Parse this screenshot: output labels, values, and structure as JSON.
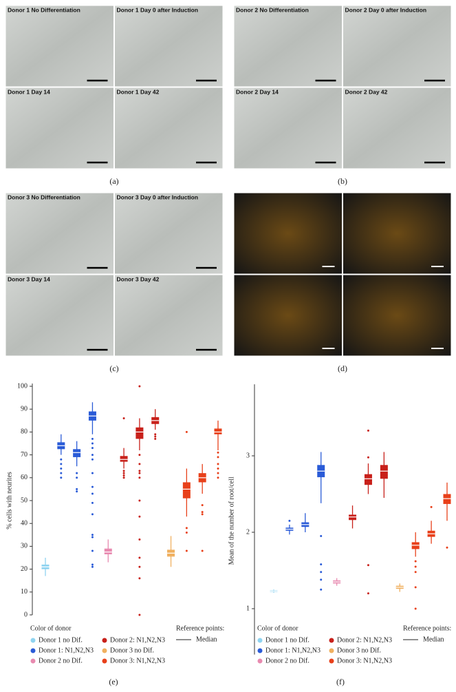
{
  "figure_panels": [
    {
      "label": "(a)",
      "images": [
        "Donor 1 No Differentiation",
        "Donor 1 Day 0 after Induction",
        "Donor 1 Day 14",
        "Donor 1 Day 42"
      ]
    },
    {
      "label": "(b)",
      "images": [
        "Donor 2 No Differentiation",
        "Donor 2 Day 0 after Induction",
        "Donor 2 Day 14",
        "Donor 2 Day 42"
      ]
    },
    {
      "label": "(c)",
      "images": [
        "Donor 3 No Differentiation",
        "Donor 3 Day 0 after Induction",
        "Donor 3 Day 14",
        "Donor 3 Day 42"
      ]
    },
    {
      "label": "(d)"
    }
  ],
  "chart_data": [
    {
      "type": "box",
      "panel_label": "(e)",
      "y_label": "% cells with neurites",
      "legend_title": "Color of donor",
      "reference_title": "Reference points:",
      "reference_label": "Median",
      "ylim": [
        0,
        100
      ],
      "yticks": [
        0,
        10,
        20,
        30,
        40,
        50,
        60,
        70,
        80,
        90,
        100
      ],
      "series": [
        {
          "name": "Donor 1 no Dif.",
          "color": "#8fd3f0",
          "boxes": [
            {
              "low": 17,
              "q1": 20,
              "median": 21,
              "q3": 22,
              "high": 25,
              "outliers": []
            }
          ]
        },
        {
          "name": "Donor 1: N1,N2,N3",
          "color": "#2a5bd7",
          "boxes": [
            {
              "low": 70,
              "q1": 72.5,
              "median": 74,
              "q3": 75.5,
              "high": 79,
              "outliers": [
                68,
                66,
                64,
                62,
                60
              ]
            },
            {
              "low": 65,
              "q1": 69,
              "median": 71,
              "q3": 72.5,
              "high": 76,
              "outliers": [
                62,
                60,
                55,
                54
              ]
            },
            {
              "low": 79,
              "q1": 85,
              "median": 87,
              "q3": 89,
              "high": 93,
              "outliers": [
                77,
                75,
                73,
                70,
                68,
                62,
                56,
                53,
                49,
                44,
                35,
                34,
                28,
                22,
                21
              ]
            }
          ]
        },
        {
          "name": "Donor 2 no Dif.",
          "color": "#e88ab0",
          "boxes": [
            {
              "low": 23,
              "q1": 26.5,
              "median": 27.5,
              "q3": 29,
              "high": 33,
              "outliers": []
            }
          ]
        },
        {
          "name": "Donor 2: N1,N2,N3",
          "color": "#c8201a",
          "boxes": [
            {
              "low": 64,
              "q1": 67,
              "median": 68,
              "q3": 69.5,
              "high": 73,
              "outliers": [
                86,
                63,
                62,
                61,
                60
              ]
            },
            {
              "low": 72,
              "q1": 77,
              "median": 80,
              "q3": 82,
              "high": 86,
              "outliers": [
                100,
                70,
                66,
                63,
                62,
                60,
                50,
                43,
                33,
                25,
                21,
                16,
                0
              ]
            },
            {
              "low": 81,
              "q1": 83.5,
              "median": 85,
              "q3": 86.5,
              "high": 90,
              "outliers": [
                79,
                78,
                77
              ]
            }
          ]
        },
        {
          "name": "Donor 3 no Dif.",
          "color": "#f0b060",
          "boxes": [
            {
              "low": 21,
              "q1": 25.5,
              "median": 27,
              "q3": 28.5,
              "high": 34.5,
              "outliers": []
            }
          ]
        },
        {
          "name": "Donor 3: N1,N2,N3",
          "color": "#e8401a",
          "boxes": [
            {
              "low": 43,
              "q1": 51,
              "median": 55,
              "q3": 58,
              "high": 64,
              "outliers": [
                80,
                38,
                36,
                28
              ]
            },
            {
              "low": 53,
              "q1": 58,
              "median": 60,
              "q3": 62,
              "high": 66,
              "outliers": [
                48,
                45,
                44,
                28
              ]
            },
            {
              "low": 72,
              "q1": 79,
              "median": 80,
              "q3": 81.5,
              "high": 85,
              "outliers": [
                71,
                69,
                66,
                64,
                62,
                60
              ]
            }
          ]
        }
      ]
    },
    {
      "type": "box",
      "panel_label": "(f)",
      "y_label": "Mean of the number of root/cell",
      "legend_title": "Color of donor",
      "reference_title": "Reference points:",
      "reference_label": "Median",
      "ylim": [
        0.4,
        3.9
      ],
      "yticks": [
        1,
        2,
        3
      ],
      "series": [
        {
          "name": "Donor 1 no Dif.",
          "color": "#8fd3f0",
          "boxes": [
            {
              "low": 1.21,
              "q1": 1.22,
              "median": 1.23,
              "q3": 1.24,
              "high": 1.25,
              "outliers": []
            }
          ]
        },
        {
          "name": "Donor 1: N1,N2,N3",
          "color": "#2a5bd7",
          "boxes": [
            {
              "low": 1.97,
              "q1": 2.02,
              "median": 2.04,
              "q3": 2.06,
              "high": 2.1,
              "outliers": [
                2.15
              ]
            },
            {
              "low": 2.0,
              "q1": 2.07,
              "median": 2.1,
              "q3": 2.13,
              "high": 2.25,
              "outliers": []
            },
            {
              "low": 2.38,
              "q1": 2.72,
              "median": 2.8,
              "q3": 2.88,
              "high": 3.05,
              "outliers": [
                1.95,
                1.58,
                1.48,
                1.38,
                1.25
              ]
            }
          ]
        },
        {
          "name": "Donor 2 no Dif.",
          "color": "#e88ab0",
          "boxes": [
            {
              "low": 1.3,
              "q1": 1.33,
              "median": 1.35,
              "q3": 1.37,
              "high": 1.4,
              "outliers": []
            }
          ]
        },
        {
          "name": "Donor 2: N1,N2,N3",
          "color": "#c8201a",
          "boxes": [
            {
              "low": 2.05,
              "q1": 2.16,
              "median": 2.2,
              "q3": 2.23,
              "high": 2.35,
              "outliers": []
            },
            {
              "low": 2.5,
              "q1": 2.62,
              "median": 2.7,
              "q3": 2.76,
              "high": 2.9,
              "outliers": [
                3.33,
                2.98,
                1.57,
                1.2
              ]
            },
            {
              "low": 2.45,
              "q1": 2.7,
              "median": 2.8,
              "q3": 2.88,
              "high": 3.05,
              "outliers": []
            }
          ]
        },
        {
          "name": "Donor 3 no Dif.",
          "color": "#f0b060",
          "boxes": [
            {
              "low": 1.22,
              "q1": 1.26,
              "median": 1.28,
              "q3": 1.3,
              "high": 1.33,
              "outliers": []
            }
          ]
        },
        {
          "name": "Donor 3: N1,N2,N3",
          "color": "#e8401a",
          "boxes": [
            {
              "low": 1.68,
              "q1": 1.78,
              "median": 1.83,
              "q3": 1.87,
              "high": 2.0,
              "outliers": [
                1.62,
                1.55,
                1.48,
                1.28,
                1.0
              ]
            },
            {
              "low": 1.85,
              "q1": 1.94,
              "median": 1.98,
              "q3": 2.02,
              "high": 2.15,
              "outliers": [
                2.33
              ]
            },
            {
              "low": 2.15,
              "q1": 2.37,
              "median": 2.44,
              "q3": 2.5,
              "high": 2.65,
              "outliers": [
                1.8
              ]
            }
          ]
        }
      ]
    }
  ]
}
